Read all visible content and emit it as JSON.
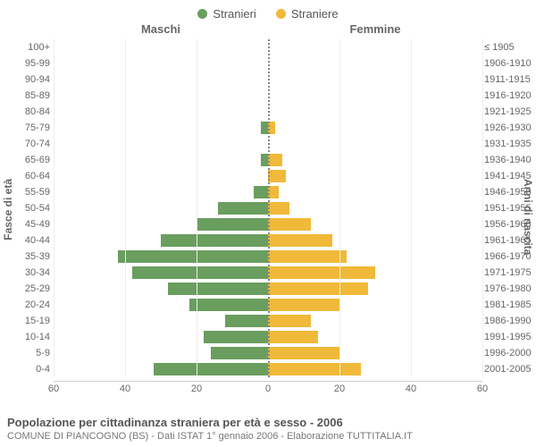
{
  "legend": {
    "male": {
      "label": "Stranieri",
      "color": "#6a9e5e"
    },
    "female": {
      "label": "Straniere",
      "color": "#f0b93a"
    }
  },
  "header": {
    "male": "Maschi",
    "female": "Femmine"
  },
  "y_axis_left": "Fasce di età",
  "y_axis_right": "Anni di nascita",
  "x_axis": {
    "max": 60,
    "ticks": [
      60,
      40,
      20,
      0,
      20,
      40,
      60
    ]
  },
  "rows": [
    {
      "age": "100+",
      "year": "≤ 1905",
      "m": 0,
      "f": 0
    },
    {
      "age": "95-99",
      "year": "1906-1910",
      "m": 0,
      "f": 0
    },
    {
      "age": "90-94",
      "year": "1911-1915",
      "m": 0,
      "f": 0
    },
    {
      "age": "85-89",
      "year": "1916-1920",
      "m": 0,
      "f": 0
    },
    {
      "age": "80-84",
      "year": "1921-1925",
      "m": 0,
      "f": 0
    },
    {
      "age": "75-79",
      "year": "1926-1930",
      "m": 2,
      "f": 2
    },
    {
      "age": "70-74",
      "year": "1931-1935",
      "m": 0,
      "f": 0
    },
    {
      "age": "65-69",
      "year": "1936-1940",
      "m": 2,
      "f": 4
    },
    {
      "age": "60-64",
      "year": "1941-1945",
      "m": 0,
      "f": 5
    },
    {
      "age": "55-59",
      "year": "1946-1950",
      "m": 4,
      "f": 3
    },
    {
      "age": "50-54",
      "year": "1951-1955",
      "m": 14,
      "f": 6
    },
    {
      "age": "45-49",
      "year": "1956-1960",
      "m": 20,
      "f": 12
    },
    {
      "age": "40-44",
      "year": "1961-1965",
      "m": 30,
      "f": 18
    },
    {
      "age": "35-39",
      "year": "1966-1970",
      "m": 42,
      "f": 22
    },
    {
      "age": "30-34",
      "year": "1971-1975",
      "m": 38,
      "f": 30
    },
    {
      "age": "25-29",
      "year": "1976-1980",
      "m": 28,
      "f": 28
    },
    {
      "age": "20-24",
      "year": "1981-1985",
      "m": 22,
      "f": 20
    },
    {
      "age": "15-19",
      "year": "1986-1990",
      "m": 12,
      "f": 12
    },
    {
      "age": "10-14",
      "year": "1991-1995",
      "m": 18,
      "f": 14
    },
    {
      "age": "5-9",
      "year": "1996-2000",
      "m": 16,
      "f": 20
    },
    {
      "age": "0-4",
      "year": "2001-2005",
      "m": 32,
      "f": 26
    }
  ],
  "grid_color": "#eee",
  "title": "Popolazione per cittadinanza straniera per età e sesso - 2006",
  "subtitle": "COMUNE DI PIANCOGNO (BS) - Dati ISTAT 1° gennaio 2006 - Elaborazione TUTTITALIA.IT"
}
